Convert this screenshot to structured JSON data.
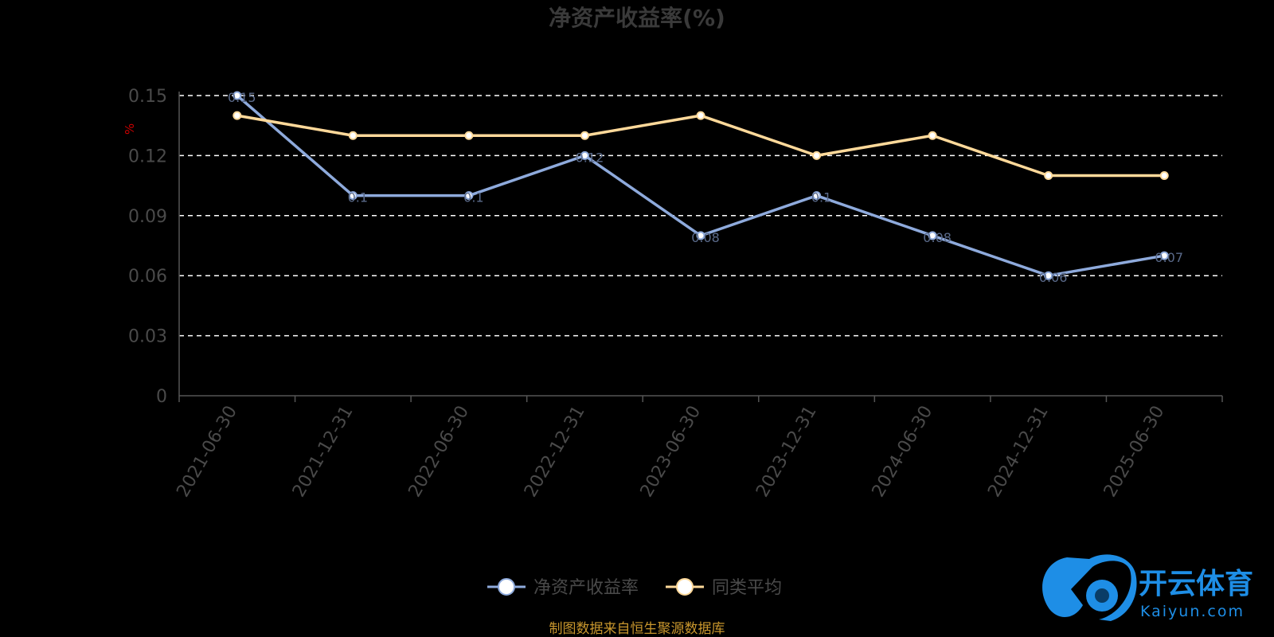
{
  "chart_data": {
    "type": "line",
    "title": "净资产收益率(%)",
    "ylabel": "%",
    "xlabel": "",
    "categories": [
      "2021-06-30",
      "2021-12-31",
      "2022-06-30",
      "2022-12-31",
      "2023-06-30",
      "2023-12-31",
      "2024-06-30",
      "2024-12-31",
      "2025-06-30"
    ],
    "ylim": [
      0,
      0.15
    ],
    "yticks": [
      "0",
      "0.03",
      "0.06",
      "0.09",
      "0.12",
      "0.15"
    ],
    "grid": true,
    "legend_position": "bottom-center",
    "series": [
      {
        "name": "净资产收益率",
        "color": "#8eaadc",
        "values": [
          0.15,
          0.1,
          0.1,
          0.12,
          0.08,
          0.1,
          0.08,
          0.06,
          0.07
        ],
        "data_labels": [
          "0.15",
          "0.1",
          "0.1",
          "0.12",
          "0.08",
          "0.1",
          "0.08",
          "0.06",
          "0.07"
        ]
      },
      {
        "name": "同类平均",
        "color": "#ffd99a",
        "values": [
          0.14,
          0.13,
          0.13,
          0.13,
          0.14,
          0.12,
          0.13,
          0.11,
          0.11
        ]
      }
    ],
    "source_note": "制图数据来自恒生聚源数据库"
  },
  "logo": {
    "name": "开云体育",
    "domain": "Kaiyun.com",
    "icon": "soccer-ball-logo-icon"
  },
  "colors": {
    "background": "#000000",
    "grid": "#ffffff",
    "axis": "#555555"
  }
}
